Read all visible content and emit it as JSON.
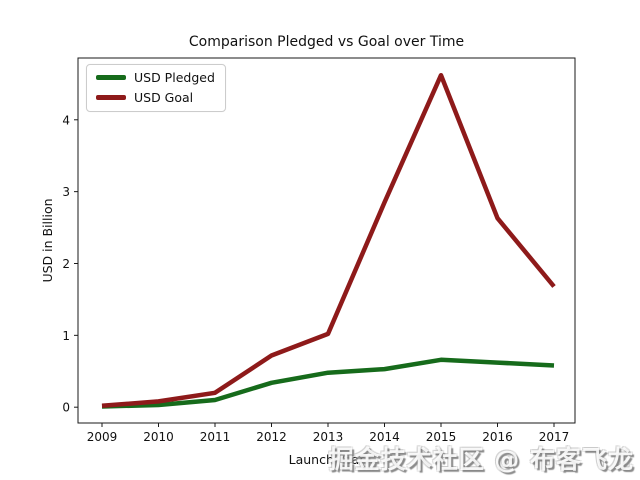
{
  "watermark": "掘金技术社区 @ 布客飞龙",
  "chart_data": {
    "type": "line",
    "title": "Comparison Pledged vs Goal over Time",
    "xlabel": "Launch Year",
    "ylabel": "USD in Billion",
    "categories": [
      "2009",
      "2010",
      "2011",
      "2012",
      "2013",
      "2014",
      "2015",
      "2016",
      "2017"
    ],
    "series": [
      {
        "name": "USD Pledged",
        "color": "#166b1b",
        "values": [
          0.01,
          0.03,
          0.1,
          0.34,
          0.48,
          0.53,
          0.66,
          0.62,
          0.58
        ]
      },
      {
        "name": "USD Goal",
        "color": "#8e1a1a",
        "values": [
          0.02,
          0.08,
          0.2,
          0.72,
          1.02,
          2.85,
          4.62,
          2.63,
          1.68
        ]
      }
    ],
    "yticks": [
      "0",
      "1",
      "2",
      "3",
      "4"
    ],
    "ylim": [
      -0.22,
      4.86
    ],
    "grid": false,
    "legend_position": "upper left",
    "line_width": 4.5,
    "axis_color": "#1a1a1a"
  }
}
